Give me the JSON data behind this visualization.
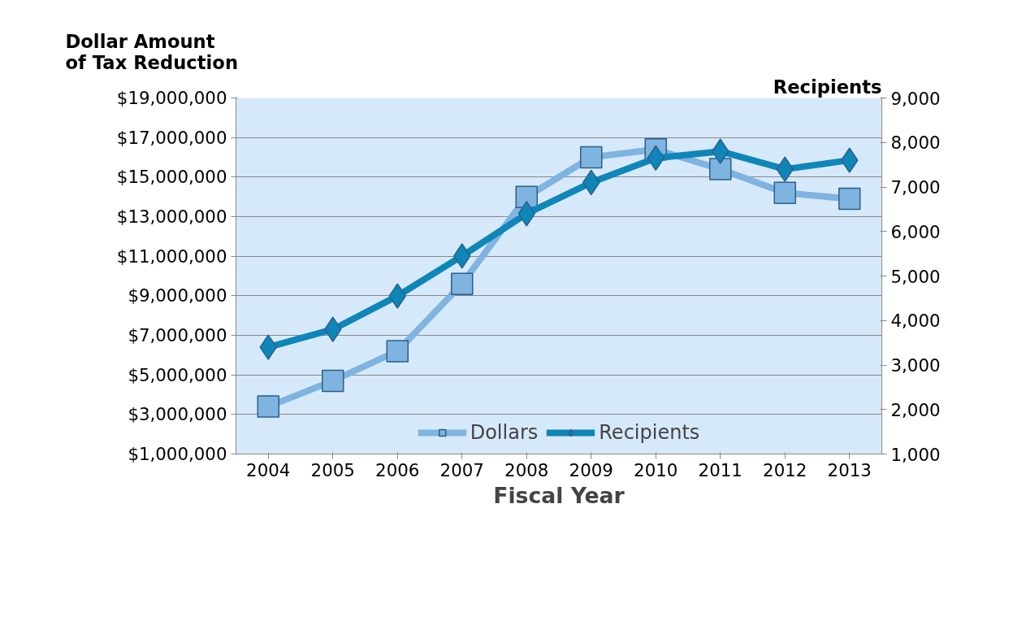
{
  "chart_data": {
    "type": "line",
    "xlabel": "Fiscal Year",
    "ylabel": "Dollar Amount\nof Tax Reduction",
    "y2label": "Recipients",
    "categories": [
      "2004",
      "2005",
      "2006",
      "2007",
      "2008",
      "2009",
      "2010",
      "2011",
      "2012",
      "2013"
    ],
    "series": [
      {
        "name": "Dollars",
        "color": "#7fb3e0",
        "marker": "square",
        "values": [
          3400000,
          4700000,
          6200000,
          9600000,
          14000000,
          16000000,
          16400000,
          15400000,
          14200000,
          13900000
        ]
      },
      {
        "name": "Recipients",
        "color": "#0e86b8",
        "marker": "diamond",
        "axis": "y2",
        "values": [
          3400,
          3800,
          4550,
          5450,
          6400,
          7100,
          7650,
          7800,
          7400,
          7600
        ]
      }
    ],
    "ylim": [
      1000000,
      19000000
    ],
    "yticks": [
      {
        "value": 1000000,
        "label": "$1,000,000"
      },
      {
        "value": 3000000,
        "label": "$3,000,000"
      },
      {
        "value": 5000000,
        "label": "$5,000,000"
      },
      {
        "value": 7000000,
        "label": "$7,000,000"
      },
      {
        "value": 9000000,
        "label": "$9,000,000"
      },
      {
        "value": 11000000,
        "label": "$11,000,000"
      },
      {
        "value": 13000000,
        "label": "$13,000,000"
      },
      {
        "value": 15000000,
        "label": "$15,000,000"
      },
      {
        "value": 17000000,
        "label": "$17,000,000"
      },
      {
        "value": 19000000,
        "label": "$19,000,000"
      }
    ],
    "y2lim": [
      1000,
      9000
    ],
    "y2ticks": [
      {
        "value": 1000,
        "label": "1,000"
      },
      {
        "value": 2000,
        "label": "2,000"
      },
      {
        "value": 3000,
        "label": "3,000"
      },
      {
        "value": 4000,
        "label": "4,000"
      },
      {
        "value": 5000,
        "label": "5,000"
      },
      {
        "value": 6000,
        "label": "6,000"
      },
      {
        "value": 7000,
        "label": "7,000"
      },
      {
        "value": 8000,
        "label": "8,000"
      },
      {
        "value": 9000,
        "label": "9,000"
      }
    ],
    "grid": "y",
    "legend": "bottom"
  }
}
